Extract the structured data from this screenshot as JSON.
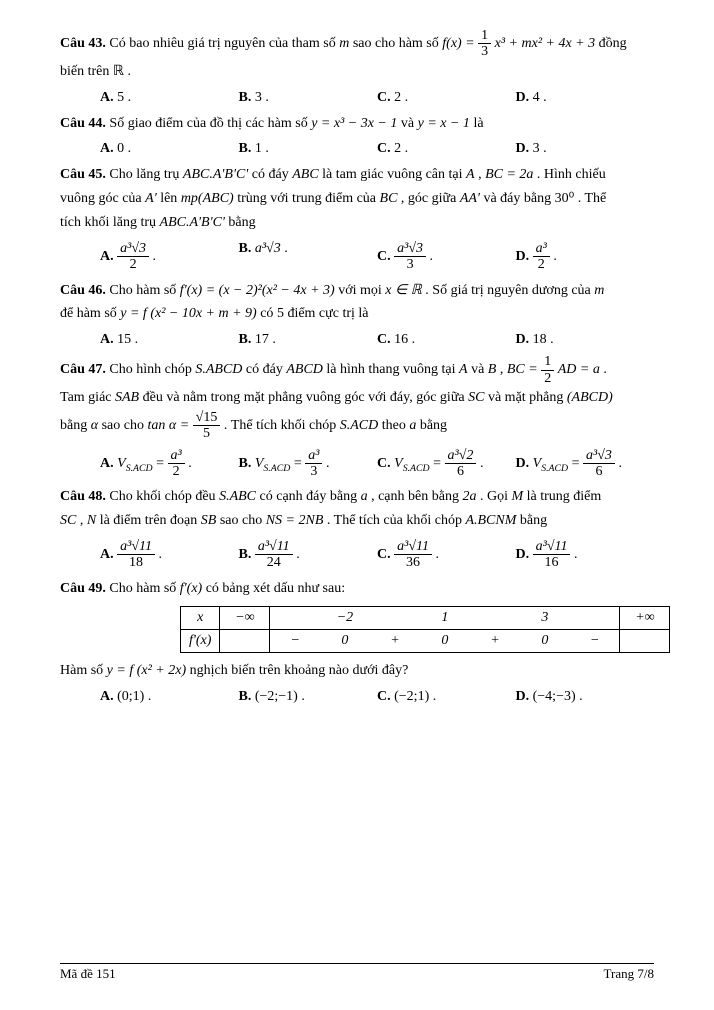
{
  "q43": {
    "label": "Câu 43.",
    "text1": " Có bao nhiêu giá trị nguyên của tham số ",
    "m": "m",
    "text2": " sao cho hàm số ",
    "fx": "f(x) = ",
    "frac_num": "1",
    "frac_den": "3",
    "poly": "x³ + mx² + 4x + 3",
    "text3": " đồng",
    "line2": "biến trên ℝ .",
    "A": "5 .",
    "B": "3 .",
    "C": "2 .",
    "D": "4 ."
  },
  "q44": {
    "label": "Câu 44.",
    "text1": " Số giao điểm của đồ thị các hàm số ",
    "eq1": "y = x³ − 3x − 1",
    "text2": " và ",
    "eq2": "y = x − 1",
    "text3": " là",
    "A": "0 .",
    "B": "1 .",
    "C": "2 .",
    "D": "3 ."
  },
  "q45": {
    "label": "Câu 45.",
    "text1": " Cho lăng trụ ",
    "prism": "ABC.A'B'C'",
    "text2": " có đáy ",
    "abc": "ABC",
    "text3": " là tam giác vuông cân tại ",
    "A_": "A",
    "text4": ", ",
    "bc": "BC = 2a",
    "text5": ". Hình chiếu",
    "line2a": "vuông góc của ",
    "Ap": "A'",
    "line2b": " lên ",
    "mp": "mp(ABC)",
    "line2c": " trùng với trung điểm của ",
    "BC": "BC",
    "line2d": ", góc giữa ",
    "AA": "AA'",
    "line2e": " và đáy bằng ",
    "ang": "30⁰",
    "line2f": ". Thể",
    "line3a": "tích khối lăng trụ ",
    "prism2": "ABC.A'B'C'",
    "line3b": " bằng",
    "opts": {
      "A_num": "a³√3",
      "A_den": "2",
      "B": "a³√3",
      "C_num": "a³√3",
      "C_den": "3",
      "D_num": "a³",
      "D_den": "2"
    }
  },
  "q46": {
    "label": "Câu 46.",
    "text1": " Cho hàm số ",
    "fp": "f'(x) = (x − 2)²(x² − 4x + 3)",
    "text2": " với mọi ",
    "xr": "x ∈ ℝ",
    "text3": " . Số giá trị nguyên dương của ",
    "m": "m",
    "line2a": "để hàm số ",
    "y": "y = f (x² − 10x + m + 9)",
    "line2b": " có ",
    "five": "5",
    "line2c": " điểm cực trị là",
    "A": "15 .",
    "B": "17 .",
    "C": "16 .",
    "D": "18 ."
  },
  "q47": {
    "label": "Câu 47.",
    "text1": " Cho hình chóp ",
    "sabcd": "S.ABCD",
    "text2": " có đáy ",
    "abcd": "ABCD",
    "text3": " là hình thang vuông tại ",
    "A_": "A",
    "text4": " và ",
    "B_": "B",
    "text5": ", ",
    "bc": "BC = ",
    "frac_num": "1",
    "frac_den": "2",
    "ad": "AD = a",
    "dot": " .",
    "line2a": "Tam giác ",
    "sab": "SAB",
    "line2b": " đều và nằm trong mặt phẳng vuông góc với đáy, góc giữa ",
    "sc": "SC",
    "line2c": " và mặt phẳng ",
    "abcdp": "(ABCD)",
    "line3a": "bằng ",
    "alpha": "α",
    "line3b": " sao cho ",
    "tan": "tan α = ",
    "tnum": "√15",
    "tden": "5",
    "line3c": ". Thể tích khối chóp ",
    "sacd": "S.ACD",
    "line3d": " theo ",
    "a_": "a",
    "line3e": " bằng",
    "opts": {
      "vlabel": "V",
      "vsub": "S.ACD",
      "eq": " = ",
      "A_num": "a³",
      "A_den": "2",
      "B_num": "a³",
      "B_den": "3",
      "C_num": "a³√2",
      "C_den": "6",
      "D_num": "a³√3",
      "D_den": "6"
    }
  },
  "q48": {
    "label": "Câu 48.",
    "text1": " Cho khối chóp đều ",
    "sabc": "S.ABC",
    "text2": " có cạnh đáy bằng ",
    "a_": "a",
    "text3": " , cạnh bên bằng ",
    "twoa": "2a",
    "text4": " . Gọi ",
    "M": "M",
    "text5": " là trung điểm",
    "line2a": "SC",
    "line2b": " , ",
    "N": "N",
    "line2c": " là điểm trên đoạn ",
    "SB": "SB",
    "line2d": " sao cho ",
    "ns": "NS = 2NB",
    "line2e": " . Thể tích của khối chóp ",
    "abcnm": "A.BCNM",
    "line2f": " bằng",
    "opts": {
      "num": "a³√11",
      "A_den": "18",
      "B_den": "24",
      "C_den": "36",
      "D_den": "16"
    }
  },
  "q49": {
    "label": "Câu 49.",
    "text1": " Cho hàm số ",
    "fp": "f'(x)",
    "text2": " có bảng xét dấu như sau:",
    "table": {
      "row1": [
        "x",
        "−∞",
        "",
        "−2",
        "",
        "1",
        "",
        "3",
        "",
        "+∞"
      ],
      "row2": [
        "f'(x)",
        "",
        "−",
        "0",
        "+",
        "0",
        "+",
        "0",
        "−",
        ""
      ]
    },
    "line2a": "Hàm số ",
    "y": "y = f (x² + 2x)",
    "line2b": " nghịch biến trên khoảng nào dưới đây?",
    "A": "(0;1) .",
    "B": "(−2;−1) .",
    "C": "(−2;1) .",
    "D": "(−4;−3) ."
  },
  "footer": {
    "left": "Mã đề 151",
    "right": "Trang 7/8"
  },
  "labels": {
    "A": "A. ",
    "B": "B. ",
    "C": "C. ",
    "D": "D. "
  }
}
